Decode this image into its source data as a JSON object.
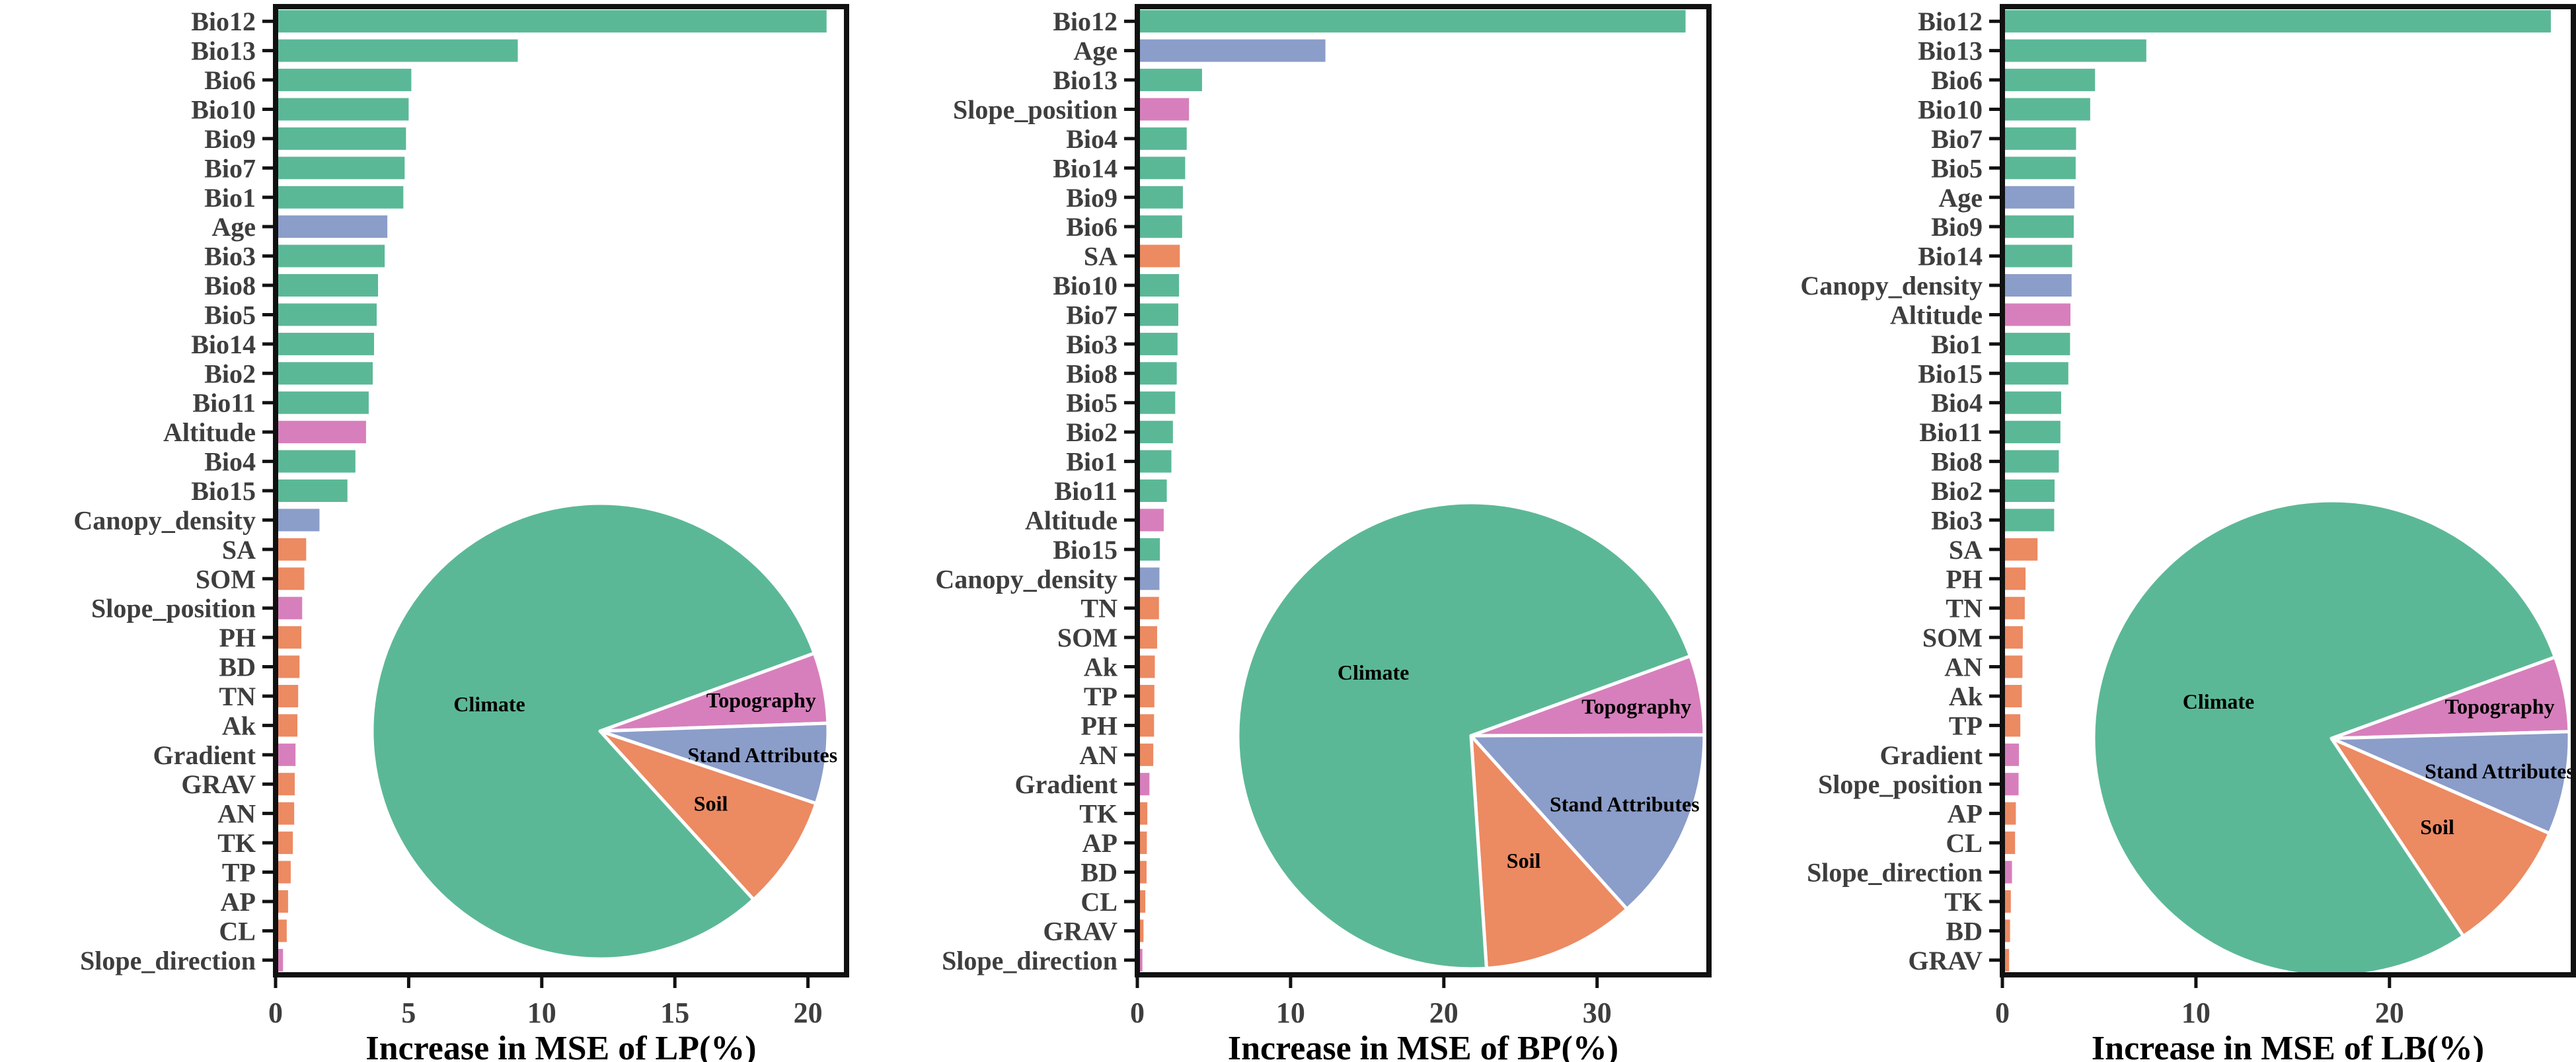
{
  "figure": {
    "description_labels": {
      "xlabel_lp": "Increase in MSE of LP(%)",
      "xlabel_bp": "Increase in MSE of BP(%)",
      "xlabel_lb": "Increase in MSE of LB(%)"
    }
  },
  "palette": {
    "climate": "#5BB896",
    "stand_attributes": "#8B9DC9",
    "topography": "#D77FBC",
    "soil": "#EC8A62",
    "axis": "#111111",
    "tick_label": "#3E3E3E",
    "title": "#000000",
    "pie_label": "#000000",
    "slice_stroke": "#ffffff"
  },
  "pie_start_angle_deg": 20,
  "chart_data": [
    {
      "type": "bar",
      "panel": "LP",
      "xlabel": "Increase in MSE of LP(%)",
      "ylabel": "",
      "xticks": [
        0,
        5,
        10,
        15,
        20
      ],
      "xlim": [
        0,
        21.45
      ],
      "grid": false,
      "bars": [
        {
          "label": "Bio12",
          "value": 20.6,
          "group": "climate"
        },
        {
          "label": "Bio13",
          "value": 9.0,
          "group": "climate"
        },
        {
          "label": "Bio6",
          "value": 5.0,
          "group": "climate"
        },
        {
          "label": "Bio10",
          "value": 4.9,
          "group": "climate"
        },
        {
          "label": "Bio9",
          "value": 4.8,
          "group": "climate"
        },
        {
          "label": "Bio7",
          "value": 4.75,
          "group": "climate"
        },
        {
          "label": "Bio1",
          "value": 4.7,
          "group": "climate"
        },
        {
          "label": "Age",
          "value": 4.1,
          "group": "stand_attributes"
        },
        {
          "label": "Bio3",
          "value": 4.0,
          "group": "climate"
        },
        {
          "label": "Bio8",
          "value": 3.75,
          "group": "climate"
        },
        {
          "label": "Bio5",
          "value": 3.7,
          "group": "climate"
        },
        {
          "label": "Bio14",
          "value": 3.6,
          "group": "climate"
        },
        {
          "label": "Bio2",
          "value": 3.55,
          "group": "climate"
        },
        {
          "label": "Bio11",
          "value": 3.4,
          "group": "climate"
        },
        {
          "label": "Altitude",
          "value": 3.3,
          "group": "topography"
        },
        {
          "label": "Bio4",
          "value": 2.9,
          "group": "climate"
        },
        {
          "label": "Bio15",
          "value": 2.6,
          "group": "climate"
        },
        {
          "label": "Canopy_density",
          "value": 1.55,
          "group": "stand_attributes"
        },
        {
          "label": "SA",
          "value": 1.05,
          "group": "soil"
        },
        {
          "label": "SOM",
          "value": 0.98,
          "group": "soil"
        },
        {
          "label": "Slope_position",
          "value": 0.9,
          "group": "topography"
        },
        {
          "label": "PH",
          "value": 0.87,
          "group": "soil"
        },
        {
          "label": "BD",
          "value": 0.8,
          "group": "soil"
        },
        {
          "label": "TN",
          "value": 0.75,
          "group": "soil"
        },
        {
          "label": "Ak",
          "value": 0.72,
          "group": "soil"
        },
        {
          "label": "Gradient",
          "value": 0.65,
          "group": "topography"
        },
        {
          "label": "GRAV",
          "value": 0.62,
          "group": "soil"
        },
        {
          "label": "AN",
          "value": 0.6,
          "group": "soil"
        },
        {
          "label": "TK",
          "value": 0.55,
          "group": "soil"
        },
        {
          "label": "TP",
          "value": 0.47,
          "group": "soil"
        },
        {
          "label": "AP",
          "value": 0.37,
          "group": "soil"
        },
        {
          "label": "CL",
          "value": 0.32,
          "group": "soil"
        },
        {
          "label": "Slope_direction",
          "value": 0.18,
          "group": "topography"
        }
      ],
      "pie": {
        "type": "pie",
        "legend_position": "inside",
        "slices": [
          {
            "label": "Topography",
            "pct": 5.0,
            "group": "topography"
          },
          {
            "label": "Stand Attributes",
            "pct": 5.7,
            "group": "stand_attributes"
          },
          {
            "label": "Soil",
            "pct": 8.1,
            "group": "soil"
          },
          {
            "label": "Climate",
            "pct": 81.2,
            "group": "climate"
          }
        ]
      }
    },
    {
      "type": "bar",
      "panel": "BP",
      "xlabel": "Increase in MSE of BP(%)",
      "ylabel": "",
      "xticks": [
        0,
        10,
        20,
        30
      ],
      "xlim": [
        0,
        37.3
      ],
      "grid": false,
      "bars": [
        {
          "label": "Bio12",
          "value": 35.6,
          "group": "climate"
        },
        {
          "label": "Age",
          "value": 12.1,
          "group": "stand_attributes"
        },
        {
          "label": "Bio13",
          "value": 4.05,
          "group": "climate"
        },
        {
          "label": "Slope_position",
          "value": 3.2,
          "group": "topography"
        },
        {
          "label": "Bio4",
          "value": 3.05,
          "group": "climate"
        },
        {
          "label": "Bio14",
          "value": 2.95,
          "group": "climate"
        },
        {
          "label": "Bio9",
          "value": 2.8,
          "group": "climate"
        },
        {
          "label": "Bio6",
          "value": 2.75,
          "group": "climate"
        },
        {
          "label": "SA",
          "value": 2.6,
          "group": "soil"
        },
        {
          "label": "Bio10",
          "value": 2.55,
          "group": "climate"
        },
        {
          "label": "Bio7",
          "value": 2.5,
          "group": "climate"
        },
        {
          "label": "Bio3",
          "value": 2.45,
          "group": "climate"
        },
        {
          "label": "Bio8",
          "value": 2.4,
          "group": "climate"
        },
        {
          "label": "Bio5",
          "value": 2.3,
          "group": "climate"
        },
        {
          "label": "Bio2",
          "value": 2.15,
          "group": "climate"
        },
        {
          "label": "Bio1",
          "value": 2.05,
          "group": "climate"
        },
        {
          "label": "Bio11",
          "value": 1.75,
          "group": "climate"
        },
        {
          "label": "Altitude",
          "value": 1.55,
          "group": "topography"
        },
        {
          "label": "Bio15",
          "value": 1.3,
          "group": "climate"
        },
        {
          "label": "Canopy_density",
          "value": 1.27,
          "group": "stand_attributes"
        },
        {
          "label": "TN",
          "value": 1.24,
          "group": "soil"
        },
        {
          "label": "SOM",
          "value": 1.12,
          "group": "soil"
        },
        {
          "label": "Ak",
          "value": 0.97,
          "group": "soil"
        },
        {
          "label": "TP",
          "value": 0.94,
          "group": "soil"
        },
        {
          "label": "PH",
          "value": 0.92,
          "group": "soil"
        },
        {
          "label": "AN",
          "value": 0.87,
          "group": "soil"
        },
        {
          "label": "Gradient",
          "value": 0.62,
          "group": "topography"
        },
        {
          "label": "TK",
          "value": 0.48,
          "group": "soil"
        },
        {
          "label": "AP",
          "value": 0.45,
          "group": "soil"
        },
        {
          "label": "BD",
          "value": 0.43,
          "group": "soil"
        },
        {
          "label": "CL",
          "value": 0.35,
          "group": "soil"
        },
        {
          "label": "GRAV",
          "value": 0.23,
          "group": "soil"
        },
        {
          "label": "Slope_direction",
          "value": 0.16,
          "group": "topography"
        }
      ],
      "pie": {
        "type": "pie",
        "legend_position": "inside",
        "slices": [
          {
            "label": "Topography",
            "pct": 5.5,
            "group": "topography"
          },
          {
            "label": "Stand Attributes",
            "pct": 13.4,
            "group": "stand_attributes"
          },
          {
            "label": "Soil",
            "pct": 10.6,
            "group": "soil"
          },
          {
            "label": "Climate",
            "pct": 70.5,
            "group": "climate"
          }
        ]
      }
    },
    {
      "type": "bar",
      "panel": "LB",
      "xlabel": "Increase in MSE of LB(%)",
      "ylabel": "",
      "xticks": [
        0,
        10,
        20
      ],
      "xlim": [
        0,
        29.5
      ],
      "grid": false,
      "bars": [
        {
          "label": "Bio12",
          "value": 28.2,
          "group": "climate"
        },
        {
          "label": "Bio13",
          "value": 7.3,
          "group": "climate"
        },
        {
          "label": "Bio6",
          "value": 4.65,
          "group": "climate"
        },
        {
          "label": "Bio10",
          "value": 4.4,
          "group": "climate"
        },
        {
          "label": "Bio7",
          "value": 3.67,
          "group": "climate"
        },
        {
          "label": "Bio5",
          "value": 3.65,
          "group": "climate"
        },
        {
          "label": "Age",
          "value": 3.58,
          "group": "stand_attributes"
        },
        {
          "label": "Bio9",
          "value": 3.55,
          "group": "climate"
        },
        {
          "label": "Bio14",
          "value": 3.47,
          "group": "climate"
        },
        {
          "label": "Canopy_density",
          "value": 3.44,
          "group": "stand_attributes"
        },
        {
          "label": "Altitude",
          "value": 3.38,
          "group": "topography"
        },
        {
          "label": "Bio1",
          "value": 3.36,
          "group": "climate"
        },
        {
          "label": "Bio15",
          "value": 3.27,
          "group": "climate"
        },
        {
          "label": "Bio4",
          "value": 2.9,
          "group": "climate"
        },
        {
          "label": "Bio11",
          "value": 2.86,
          "group": "climate"
        },
        {
          "label": "Bio8",
          "value": 2.78,
          "group": "climate"
        },
        {
          "label": "Bio2",
          "value": 2.56,
          "group": "climate"
        },
        {
          "label": "Bio3",
          "value": 2.54,
          "group": "climate"
        },
        {
          "label": "SA",
          "value": 1.68,
          "group": "soil"
        },
        {
          "label": "PH",
          "value": 1.06,
          "group": "soil"
        },
        {
          "label": "TN",
          "value": 1.02,
          "group": "soil"
        },
        {
          "label": "SOM",
          "value": 0.92,
          "group": "soil"
        },
        {
          "label": "AN",
          "value": 0.9,
          "group": "soil"
        },
        {
          "label": "Ak",
          "value": 0.87,
          "group": "soil"
        },
        {
          "label": "TP",
          "value": 0.79,
          "group": "soil"
        },
        {
          "label": "Gradient",
          "value": 0.72,
          "group": "topography"
        },
        {
          "label": "Slope_position",
          "value": 0.7,
          "group": "topography"
        },
        {
          "label": "AP",
          "value": 0.56,
          "group": "soil"
        },
        {
          "label": "CL",
          "value": 0.52,
          "group": "soil"
        },
        {
          "label": "Slope_direction",
          "value": 0.36,
          "group": "topography"
        },
        {
          "label": "TK",
          "value": 0.3,
          "group": "soil"
        },
        {
          "label": "BD",
          "value": 0.26,
          "group": "soil"
        },
        {
          "label": "GRAV",
          "value": 0.21,
          "group": "soil"
        }
      ],
      "pie": {
        "type": "pie",
        "legend_position": "inside",
        "slices": [
          {
            "label": "Topography",
            "pct": 5.1,
            "group": "topography"
          },
          {
            "label": "Stand Attributes",
            "pct": 7.0,
            "group": "stand_attributes"
          },
          {
            "label": "Soil",
            "pct": 9.1,
            "group": "soil"
          },
          {
            "label": "Climate",
            "pct": 78.8,
            "group": "climate"
          }
        ]
      }
    }
  ]
}
